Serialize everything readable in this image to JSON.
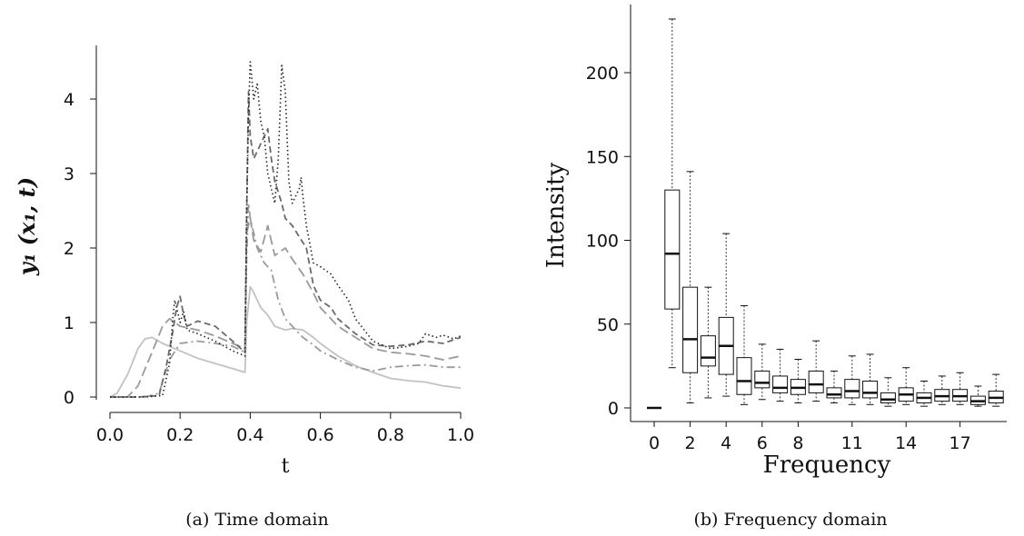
{
  "chart_data": [
    {
      "type": "line",
      "caption": "(a)  Time domain",
      "xlabel": "t",
      "ylabel": "y₁ (x₁, t)",
      "xlim": [
        0.0,
        1.0
      ],
      "ylim": [
        -0.2,
        4.6
      ],
      "x_ticks": [
        "0.0",
        "0.2",
        "0.4",
        "0.6",
        "0.8",
        "1.0"
      ],
      "y_ticks": [
        "0",
        "1",
        "2",
        "3",
        "4"
      ],
      "series": [
        {
          "style": "dotted",
          "color": "#222222",
          "points": [
            [
              0,
              0
            ],
            [
              0.1,
              0
            ],
            [
              0.15,
              0.02
            ],
            [
              0.17,
              0.45
            ],
            [
              0.18,
              1.1
            ],
            [
              0.185,
              1.3
            ],
            [
              0.2,
              1.0
            ],
            [
              0.21,
              1.15
            ],
            [
              0.22,
              0.9
            ],
            [
              0.25,
              0.85
            ],
            [
              0.3,
              0.75
            ],
            [
              0.35,
              0.62
            ],
            [
              0.385,
              0.55
            ],
            [
              0.39,
              2.5
            ],
            [
              0.395,
              3.8
            ],
            [
              0.4,
              4.5
            ],
            [
              0.41,
              4.0
            ],
            [
              0.42,
              4.2
            ],
            [
              0.43,
              3.7
            ],
            [
              0.44,
              3.5
            ],
            [
              0.45,
              3.0
            ],
            [
              0.47,
              2.6
            ],
            [
              0.48,
              3.2
            ],
            [
              0.49,
              4.45
            ],
            [
              0.5,
              4.1
            ],
            [
              0.51,
              2.9
            ],
            [
              0.52,
              2.6
            ],
            [
              0.54,
              2.8
            ],
            [
              0.545,
              2.95
            ],
            [
              0.55,
              2.7
            ],
            [
              0.56,
              2.3
            ],
            [
              0.58,
              1.8
            ],
            [
              0.6,
              1.75
            ],
            [
              0.63,
              1.65
            ],
            [
              0.65,
              1.5
            ],
            [
              0.68,
              1.3
            ],
            [
              0.7,
              1.05
            ],
            [
              0.75,
              0.75
            ],
            [
              0.8,
              0.65
            ],
            [
              0.85,
              0.68
            ],
            [
              0.88,
              0.72
            ],
            [
              0.9,
              0.85
            ],
            [
              0.93,
              0.8
            ],
            [
              0.95,
              0.83
            ],
            [
              0.98,
              0.78
            ],
            [
              1.0,
              0.82
            ]
          ]
        },
        {
          "style": "dashed",
          "color": "#6a6a6a",
          "points": [
            [
              0,
              0
            ],
            [
              0.08,
              0
            ],
            [
              0.14,
              0.02
            ],
            [
              0.16,
              0.4
            ],
            [
              0.18,
              0.9
            ],
            [
              0.19,
              1.2
            ],
            [
              0.2,
              1.35
            ],
            [
              0.21,
              1.1
            ],
            [
              0.22,
              0.95
            ],
            [
              0.25,
              1.02
            ],
            [
              0.3,
              0.95
            ],
            [
              0.35,
              0.75
            ],
            [
              0.385,
              0.6
            ],
            [
              0.39,
              2.5
            ],
            [
              0.395,
              4.1
            ],
            [
              0.4,
              3.5
            ],
            [
              0.41,
              3.2
            ],
            [
              0.43,
              3.4
            ],
            [
              0.45,
              3.6
            ],
            [
              0.46,
              3.2
            ],
            [
              0.47,
              2.9
            ],
            [
              0.49,
              2.6
            ],
            [
              0.5,
              2.4
            ],
            [
              0.52,
              2.3
            ],
            [
              0.54,
              2.15
            ],
            [
              0.56,
              2.0
            ],
            [
              0.58,
              1.5
            ],
            [
              0.6,
              1.3
            ],
            [
              0.63,
              1.2
            ],
            [
              0.65,
              1.05
            ],
            [
              0.7,
              0.85
            ],
            [
              0.75,
              0.7
            ],
            [
              0.8,
              0.68
            ],
            [
              0.85,
              0.7
            ],
            [
              0.9,
              0.75
            ],
            [
              0.95,
              0.72
            ],
            [
              1.0,
              0.8
            ]
          ]
        },
        {
          "style": "longdash",
          "color": "#9a9a9a",
          "points": [
            [
              0,
              0
            ],
            [
              0.05,
              0
            ],
            [
              0.08,
              0.15
            ],
            [
              0.12,
              0.6
            ],
            [
              0.15,
              0.95
            ],
            [
              0.17,
              1.05
            ],
            [
              0.2,
              0.95
            ],
            [
              0.25,
              0.9
            ],
            [
              0.3,
              0.82
            ],
            [
              0.35,
              0.72
            ],
            [
              0.385,
              0.65
            ],
            [
              0.39,
              2.2
            ],
            [
              0.4,
              2.4
            ],
            [
              0.41,
              2.1
            ],
            [
              0.43,
              1.95
            ],
            [
              0.45,
              2.3
            ],
            [
              0.47,
              1.9
            ],
            [
              0.5,
              2.0
            ],
            [
              0.52,
              1.85
            ],
            [
              0.55,
              1.65
            ],
            [
              0.58,
              1.4
            ],
            [
              0.6,
              1.2
            ],
            [
              0.63,
              1.05
            ],
            [
              0.65,
              0.95
            ],
            [
              0.7,
              0.8
            ],
            [
              0.75,
              0.65
            ],
            [
              0.8,
              0.6
            ],
            [
              0.85,
              0.58
            ],
            [
              0.9,
              0.55
            ],
            [
              0.95,
              0.5
            ],
            [
              1.0,
              0.55
            ]
          ]
        },
        {
          "style": "dashdot",
          "color": "#9a9a9a",
          "points": [
            [
              0,
              0
            ],
            [
              0.1,
              0
            ],
            [
              0.14,
              0.05
            ],
            [
              0.17,
              0.5
            ],
            [
              0.2,
              0.72
            ],
            [
              0.25,
              0.75
            ],
            [
              0.3,
              0.72
            ],
            [
              0.35,
              0.68
            ],
            [
              0.385,
              0.6
            ],
            [
              0.39,
              1.9
            ],
            [
              0.395,
              2.6
            ],
            [
              0.4,
              2.4
            ],
            [
              0.42,
              2.0
            ],
            [
              0.44,
              1.8
            ],
            [
              0.46,
              1.7
            ],
            [
              0.48,
              1.3
            ],
            [
              0.5,
              1.05
            ],
            [
              0.52,
              0.95
            ],
            [
              0.55,
              0.8
            ],
            [
              0.58,
              0.7
            ],
            [
              0.6,
              0.62
            ],
            [
              0.65,
              0.5
            ],
            [
              0.7,
              0.4
            ],
            [
              0.75,
              0.35
            ],
            [
              0.8,
              0.4
            ],
            [
              0.85,
              0.42
            ],
            [
              0.9,
              0.43
            ],
            [
              0.95,
              0.4
            ],
            [
              1.0,
              0.4
            ]
          ]
        },
        {
          "style": "solid",
          "color": "#c2c2c2",
          "points": [
            [
              0,
              0
            ],
            [
              0.02,
              0.05
            ],
            [
              0.05,
              0.3
            ],
            [
              0.08,
              0.65
            ],
            [
              0.1,
              0.78
            ],
            [
              0.12,
              0.8
            ],
            [
              0.15,
              0.72
            ],
            [
              0.2,
              0.62
            ],
            [
              0.25,
              0.52
            ],
            [
              0.3,
              0.45
            ],
            [
              0.35,
              0.38
            ],
            [
              0.385,
              0.33
            ],
            [
              0.39,
              1.0
            ],
            [
              0.4,
              1.48
            ],
            [
              0.41,
              1.4
            ],
            [
              0.43,
              1.2
            ],
            [
              0.45,
              1.1
            ],
            [
              0.47,
              0.95
            ],
            [
              0.5,
              0.9
            ],
            [
              0.52,
              0.92
            ],
            [
              0.55,
              0.9
            ],
            [
              0.58,
              0.8
            ],
            [
              0.6,
              0.72
            ],
            [
              0.65,
              0.55
            ],
            [
              0.7,
              0.42
            ],
            [
              0.75,
              0.33
            ],
            [
              0.8,
              0.25
            ],
            [
              0.85,
              0.22
            ],
            [
              0.9,
              0.2
            ],
            [
              0.95,
              0.15
            ],
            [
              1.0,
              0.12
            ]
          ]
        }
      ]
    },
    {
      "type": "box",
      "caption": "(b)  Frequency domain",
      "xlabel": "Frequency",
      "ylabel": "Intensity",
      "ylim": [
        -5,
        240
      ],
      "x_tick_labels": [
        "0",
        "2",
        "4",
        "6",
        "8",
        "11",
        "14",
        "17"
      ],
      "y_ticks": [
        "0",
        "50",
        "100",
        "150",
        "200"
      ],
      "boxes": [
        {
          "f": 0,
          "low": 0,
          "q1": 0,
          "median": 0,
          "q3": 0,
          "high": 0
        },
        {
          "f": 1,
          "low": 24,
          "q1": 59,
          "median": 92,
          "q3": 130,
          "high": 232
        },
        {
          "f": 2,
          "low": 3,
          "q1": 21,
          "median": 41,
          "q3": 72,
          "high": 141
        },
        {
          "f": 3,
          "low": 6,
          "q1": 25,
          "median": 30,
          "q3": 43,
          "high": 72
        },
        {
          "f": 4,
          "low": 7,
          "q1": 20,
          "median": 37,
          "q3": 54,
          "high": 104
        },
        {
          "f": 5,
          "low": 2,
          "q1": 8,
          "median": 16,
          "q3": 30,
          "high": 61
        },
        {
          "f": 6,
          "low": 5,
          "q1": 12,
          "median": 15,
          "q3": 22,
          "high": 38
        },
        {
          "f": 7,
          "low": 4,
          "q1": 9,
          "median": 12,
          "q3": 19,
          "high": 35
        },
        {
          "f": 8,
          "low": 3,
          "q1": 8,
          "median": 12,
          "q3": 17,
          "high": 29
        },
        {
          "f": 9,
          "low": 4,
          "q1": 9,
          "median": 14,
          "q3": 22,
          "high": 40
        },
        {
          "f": 10,
          "low": 3,
          "q1": 6,
          "median": 8,
          "q3": 12,
          "high": 22
        },
        {
          "f": 11,
          "low": 2,
          "q1": 6,
          "median": 10,
          "q3": 17,
          "high": 31
        },
        {
          "f": 12,
          "low": 2,
          "q1": 6,
          "median": 9,
          "q3": 16,
          "high": 32
        },
        {
          "f": 13,
          "low": 1,
          "q1": 3,
          "median": 5,
          "q3": 9,
          "high": 18
        },
        {
          "f": 14,
          "low": 2,
          "q1": 4,
          "median": 8,
          "q3": 12,
          "high": 24
        },
        {
          "f": 15,
          "low": 1,
          "q1": 3,
          "median": 6,
          "q3": 9,
          "high": 16
        },
        {
          "f": 16,
          "low": 2,
          "q1": 4,
          "median": 7,
          "q3": 11,
          "high": 19
        },
        {
          "f": 17,
          "low": 2,
          "q1": 4,
          "median": 7,
          "q3": 11,
          "high": 21
        },
        {
          "f": 18,
          "low": 1,
          "q1": 2,
          "median": 4,
          "q3": 7,
          "high": 13
        },
        {
          "f": 19,
          "low": 1,
          "q1": 3,
          "median": 6,
          "q3": 10,
          "high": 20
        }
      ]
    }
  ]
}
